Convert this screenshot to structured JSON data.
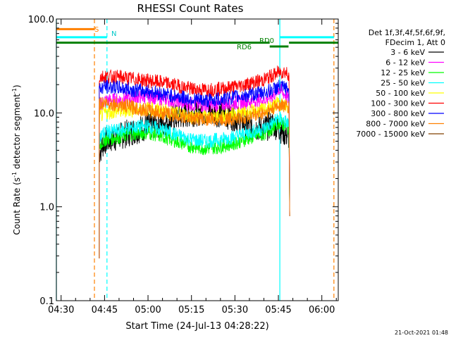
{
  "chart_data": {
    "type": "line",
    "title": "RHESSI Count Rates",
    "xlabel": "Start Time (24-Jul-13 04:28:22)",
    "ylabel_main": "Count Rate (s",
    "ylabel_sup1": "-1",
    "ylabel_mid": " detector segment",
    "ylabel_sup2": "-1",
    "ylabel_end": ")",
    "y_log": true,
    "ylim": [
      0.1,
      100.0
    ],
    "xlim": [
      "04:28:22",
      "06:05:40"
    ],
    "x_ticks": [
      "04:30",
      "04:45",
      "05:00",
      "05:15",
      "05:30",
      "05:45",
      "06:00"
    ],
    "y_ticks": [
      "0.1",
      "1.0",
      "10.0",
      "100.0"
    ],
    "grid": false,
    "legend_position": "right",
    "legend_header": [
      "Det 1f,3f,4f,5f,6f,9f,",
      "FDecim 1, Att 0"
    ],
    "footer": "21-Oct-2021 01:48",
    "annotations": {
      "s_marker": "S",
      "n_marker": "N",
      "rd0": "RD0",
      "rd6": "RD6"
    },
    "vertical_lines": [
      {
        "time": "04:28:22",
        "color": "#00ffff",
        "style": "solid"
      },
      {
        "time": "04:41:30",
        "color": "#ff8000",
        "style": "dashed"
      },
      {
        "time": "04:45:50",
        "color": "#00ffff",
        "style": "dashed"
      },
      {
        "time": "05:45:30",
        "color": "#00ffff",
        "style": "solid"
      },
      {
        "time": "06:04:10",
        "color": "#ff8000",
        "style": "dashed"
      }
    ],
    "data_start": "04:43:10",
    "data_end": "05:48:40",
    "flag_bars": [
      {
        "label": "S",
        "color": "#ff8000",
        "segments": [
          [
            "04:28:22",
            "04:41:30"
          ]
        ],
        "y": 78
      },
      {
        "label": "N",
        "color": "#00ffff",
        "segments": [
          [
            "04:28:22",
            "04:45:50"
          ],
          [
            "05:45:30",
            "06:04:10"
          ]
        ],
        "y": 64
      },
      {
        "label": "RD0",
        "color": "#008000",
        "segments": [
          [
            "04:28:22",
            "05:42:00"
          ],
          [
            "05:48:40",
            "06:05:40"
          ]
        ],
        "y": 56
      },
      {
        "label": "RD6",
        "color": "#008000",
        "segments": [
          [
            "05:42:00",
            "05:48:30"
          ]
        ],
        "y": 51
      }
    ],
    "series": [
      {
        "name": "3 - 6 keV",
        "color": "#000000",
        "noise": 0.35,
        "x": [
          "04:43:10",
          "04:45:00",
          "04:50:00",
          "04:55:00",
          "05:00:00",
          "05:05:00",
          "05:10:00",
          "05:15:00",
          "05:20:00",
          "05:25:00",
          "05:30:00",
          "05:35:00",
          "05:40:00",
          "05:43:00",
          "05:45:00",
          "05:47:00",
          "05:48:40"
        ],
        "values": [
          3.8,
          5.0,
          5.6,
          6.4,
          7.2,
          7.8,
          9.0,
          10.0,
          10.4,
          9.8,
          9.0,
          7.2,
          6.8,
          7.6,
          7.0,
          6.2,
          5.6
        ]
      },
      {
        "name": "6 - 12 keV",
        "color": "#ff00ff",
        "x": [
          "04:43:10",
          "04:45:00",
          "04:50:00",
          "04:55:00",
          "05:00:00",
          "05:05:00",
          "05:10:00",
          "05:15:00",
          "05:20:00",
          "05:25:00",
          "05:30:00",
          "05:35:00",
          "05:40:00",
          "05:43:00",
          "05:45:00",
          "05:47:00",
          "05:48:40"
        ],
        "values": [
          12.0,
          13.5,
          13.8,
          14.5,
          15.0,
          14.2,
          13.2,
          12.4,
          12.0,
          12.3,
          12.8,
          13.2,
          13.8,
          15.0,
          18.0,
          16.0,
          14.0
        ]
      },
      {
        "name": "12 - 25 keV",
        "color": "#00ff00",
        "x": [
          "04:43:10",
          "04:45:00",
          "04:50:00",
          "04:55:00",
          "05:00:00",
          "05:05:00",
          "05:10:00",
          "05:15:00",
          "05:20:00",
          "05:25:00",
          "05:30:00",
          "05:35:00",
          "05:40:00",
          "05:43:00",
          "05:45:00",
          "05:47:00",
          "05:48:40"
        ],
        "values": [
          4.5,
          5.2,
          5.6,
          6.0,
          6.2,
          5.6,
          5.0,
          4.4,
          4.2,
          4.4,
          4.8,
          5.4,
          6.0,
          7.0,
          8.0,
          7.4,
          6.8
        ]
      },
      {
        "name": "25 - 50 keV",
        "color": "#00ffff",
        "x": [
          "04:43:10",
          "04:45:00",
          "04:50:00",
          "04:55:00",
          "05:00:00",
          "05:05:00",
          "05:10:00",
          "05:15:00",
          "05:20:00",
          "05:25:00",
          "05:30:00",
          "05:35:00",
          "05:40:00",
          "05:43:00",
          "05:45:00",
          "05:47:00",
          "05:48:40"
        ],
        "values": [
          5.5,
          6.2,
          6.5,
          7.0,
          7.2,
          6.6,
          5.8,
          5.2,
          5.0,
          5.2,
          5.6,
          6.2,
          6.8,
          7.8,
          8.8,
          8.2,
          7.6
        ]
      },
      {
        "name": "50 - 100 keV",
        "color": "#ffff00",
        "x": [
          "04:43:10",
          "04:45:00",
          "04:50:00",
          "04:55:00",
          "05:00:00",
          "05:05:00",
          "05:10:00",
          "05:15:00",
          "05:20:00",
          "05:25:00",
          "05:30:00",
          "05:35:00",
          "05:40:00",
          "05:43:00",
          "05:45:00",
          "05:47:00",
          "05:48:40"
        ],
        "values": [
          9.0,
          10.0,
          10.4,
          10.8,
          11.2,
          10.6,
          9.8,
          9.2,
          9.0,
          9.2,
          9.6,
          10.2,
          10.8,
          11.6,
          12.8,
          12.0,
          11.0
        ]
      },
      {
        "name": "100 - 300 keV",
        "color": "#ff0000",
        "x": [
          "04:43:10",
          "04:45:00",
          "04:50:00",
          "04:55:00",
          "05:00:00",
          "05:05:00",
          "05:10:00",
          "05:15:00",
          "05:20:00",
          "05:25:00",
          "05:30:00",
          "05:35:00",
          "05:40:00",
          "05:43:00",
          "05:45:00",
          "05:47:00",
          "05:48:40"
        ],
        "values": [
          24.0,
          24.5,
          24.0,
          23.0,
          22.0,
          21.0,
          19.5,
          18.0,
          17.5,
          18.0,
          19.0,
          20.5,
          22.5,
          25.0,
          27.0,
          27.5,
          26.0
        ]
      },
      {
        "name": "300 - 800 keV",
        "color": "#0000ff",
        "x": [
          "04:43:10",
          "04:45:00",
          "04:50:00",
          "04:55:00",
          "05:00:00",
          "05:05:00",
          "05:10:00",
          "05:15:00",
          "05:20:00",
          "05:25:00",
          "05:30:00",
          "05:35:00",
          "05:40:00",
          "05:43:00",
          "05:45:00",
          "05:47:00",
          "05:48:40"
        ],
        "values": [
          18.0,
          19.0,
          18.5,
          17.5,
          17.0,
          16.0,
          15.0,
          14.0,
          13.5,
          14.0,
          14.8,
          15.5,
          16.5,
          17.5,
          19.0,
          18.5,
          17.5
        ]
      },
      {
        "name": "800 - 7000 keV",
        "color": "#ff8000",
        "x": [
          "04:43:10",
          "04:45:00",
          "04:50:00",
          "04:55:00",
          "05:00:00",
          "05:05:00",
          "05:10:00",
          "05:15:00",
          "05:20:00",
          "05:25:00",
          "05:30:00",
          "05:35:00",
          "05:40:00",
          "05:43:00",
          "05:45:00",
          "05:47:00",
          "05:48:40"
        ],
        "values": [
          12.5,
          12.8,
          12.2,
          11.4,
          10.6,
          10.0,
          9.4,
          8.8,
          8.6,
          8.5,
          8.7,
          9.2,
          10.0,
          11.0,
          12.2,
          12.0,
          11.4
        ]
      },
      {
        "name": "7000 - 15000 keV",
        "color": "#804000",
        "x": [],
        "values": []
      }
    ]
  }
}
